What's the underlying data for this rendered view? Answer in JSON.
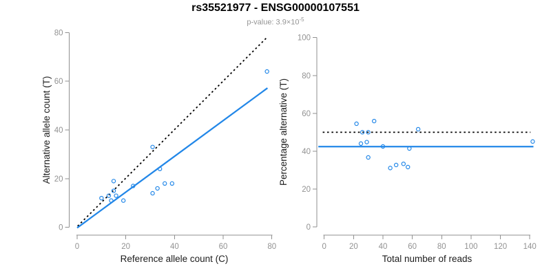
{
  "header": {
    "title": "rs35521977 - ENSG00000107551",
    "subtitle_prefix": "p-value: 3.9×10",
    "subtitle_exponent": "-5"
  },
  "colors": {
    "accent_blue": "#2287e8",
    "axis_gray": "#8f8f8f",
    "tick_text_gray": "#929292",
    "label_dark": "#1c1c1c",
    "dotted_line_black": "#000000",
    "title_black": "#000000",
    "subtitle_gray": "#949494"
  },
  "chart_data": [
    {
      "type": "scatter",
      "xlabel": "Reference allele count (C)",
      "ylabel": "Alternative allele count (T)",
      "xlim": [
        0,
        80
      ],
      "ylim": [
        0,
        80
      ],
      "xticks": [
        0,
        20,
        40,
        60,
        80
      ],
      "yticks": [
        0,
        20,
        40,
        60,
        80
      ],
      "grid": false,
      "points": [
        [
          10,
          12
        ],
        [
          13,
          13
        ],
        [
          14,
          11
        ],
        [
          15,
          15
        ],
        [
          15,
          19
        ],
        [
          16,
          13
        ],
        [
          19,
          11
        ],
        [
          23,
          17
        ],
        [
          31,
          14
        ],
        [
          31,
          33
        ],
        [
          33,
          16
        ],
        [
          34,
          24
        ],
        [
          36,
          18
        ],
        [
          39,
          18
        ],
        [
          78,
          64
        ]
      ],
      "lines": [
        {
          "name": "identity-line",
          "style": "dotted",
          "color": "black",
          "x1": 0.2,
          "y1": 0.5,
          "x2": 78,
          "y2": 78
        },
        {
          "name": "regression-line",
          "style": "solid",
          "color": "blue",
          "x1": 0,
          "y1": -0.2,
          "x2": 78.2,
          "y2": 57.2
        }
      ]
    },
    {
      "type": "scatter",
      "xlabel": "Total number of reads",
      "ylabel": "Percentage alternative (T)",
      "xlim": [
        0,
        140
      ],
      "ylim": [
        0,
        100
      ],
      "xticks": [
        0,
        20,
        40,
        60,
        80,
        100,
        120,
        140
      ],
      "yticks": [
        0,
        20,
        40,
        60,
        80,
        100
      ],
      "grid": false,
      "points": [
        [
          22,
          54.5
        ],
        [
          25,
          44
        ],
        [
          26,
          50
        ],
        [
          29,
          44.8
        ],
        [
          30,
          36.7
        ],
        [
          30,
          50
        ],
        [
          34,
          55.9
        ],
        [
          40,
          42.5
        ],
        [
          45,
          31.1
        ],
        [
          49,
          32.7
        ],
        [
          54,
          33.3
        ],
        [
          57,
          31.6
        ],
        [
          58,
          41.4
        ],
        [
          64,
          51.6
        ],
        [
          142,
          45.1
        ]
      ],
      "lines": [
        {
          "name": "expected-50-percent-line",
          "style": "dotted",
          "color": "black",
          "x1": -1,
          "y1": 50,
          "x2": 140.5,
          "y2": 50
        },
        {
          "name": "mean-percentage-line",
          "style": "solid",
          "color": "blue",
          "x1": -4,
          "y1": 42.4,
          "x2": 142.5,
          "y2": 42.4
        }
      ]
    }
  ]
}
